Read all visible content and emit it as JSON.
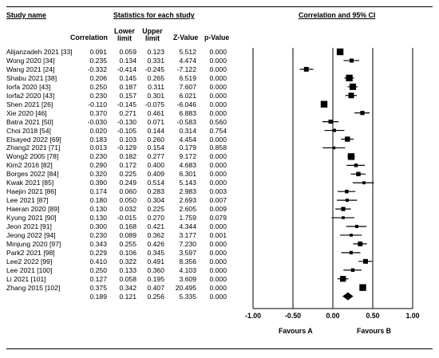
{
  "headers": {
    "study_name": "Study name",
    "stats_title": "Statistics for each study",
    "ci_title": "Correlation and 95% CI",
    "correlation": "Correlation",
    "lower_limit_1": "Lower",
    "lower_limit_2": "limit",
    "upper_limit_1": "Upper",
    "upper_limit_2": "limit",
    "z_value": "Z-Value",
    "p_value": "p-Value"
  },
  "chart_data": {
    "type": "forest",
    "title": "Correlation and 95% CI",
    "xlim": [
      -1.0,
      1.0
    ],
    "x_ticks": [
      "-1.00",
      "-0.50",
      "0.00",
      "0.50",
      "1.00"
    ],
    "x_tick_values": [
      -1.0,
      -0.5,
      0.0,
      0.5,
      1.0
    ],
    "favours_left": "Favours A",
    "favours_right": "Favours B",
    "studies": [
      {
        "name": "Alijanzadeh 2021 [33]",
        "r": "0.091",
        "lower": "0.059",
        "upper": "0.123",
        "z": "5.512",
        "p": "0.000"
      },
      {
        "name": "Wong 2020 [34]",
        "r": "0.235",
        "lower": "0.134",
        "upper": "0.331",
        "z": "4.474",
        "p": "0.000"
      },
      {
        "name": "Wang 2021 [24]",
        "r": "-0.332",
        "lower": "-0.414",
        "upper": "-0.245",
        "z": "-7.122",
        "p": "0.000"
      },
      {
        "name": "Shabu 2021 [38]",
        "r": "0.206",
        "lower": "0.145",
        "upper": "0.265",
        "z": "6.519",
        "p": "0.000"
      },
      {
        "name": "Iorfa 2020 [43]",
        "r": "0.250",
        "lower": "0.187",
        "upper": "0.311",
        "z": "7.607",
        "p": "0.000"
      },
      {
        "name": "Iorfa2 2020 [43]",
        "r": "0.230",
        "lower": "0.157",
        "upper": "0.301",
        "z": "6.021",
        "p": "0.000"
      },
      {
        "name": "Shen 2021 [26]",
        "r": "-0.110",
        "lower": "-0.145",
        "upper": "-0.075",
        "z": "-6.046",
        "p": "0.000"
      },
      {
        "name": "Xie 2020 [46]",
        "r": "0.370",
        "lower": "0.271",
        "upper": "0.461",
        "z": "6.883",
        "p": "0.000"
      },
      {
        "name": "Batra 2021 [50]",
        "r": "-0.030",
        "lower": "-0.130",
        "upper": "0.071",
        "z": "-0.583",
        "p": "0.560"
      },
      {
        "name": "Choi 2018 [54]",
        "r": "0.020",
        "lower": "-0.105",
        "upper": "0.144",
        "z": "0.314",
        "p": "0.754"
      },
      {
        "name": "Elsayed 2022 [69]",
        "r": "0.183",
        "lower": "0.103",
        "upper": "0.260",
        "z": "4.454",
        "p": "0.000"
      },
      {
        "name": "Zhang2 2021 [71]",
        "r": "0.013",
        "lower": "-0.129",
        "upper": "0.154",
        "z": "0.179",
        "p": "0.858"
      },
      {
        "name": "Wong2 2005 [78]",
        "r": "0.230",
        "lower": "0.182",
        "upper": "0.277",
        "z": "9.172",
        "p": "0.000"
      },
      {
        "name": "Kim2 2016 [82]",
        "r": "0.290",
        "lower": "0.172",
        "upper": "0.400",
        "z": "4.683",
        "p": "0.000"
      },
      {
        "name": "Borges 2022 [84]",
        "r": "0.320",
        "lower": "0.225",
        "upper": "0.409",
        "z": "6.301",
        "p": "0.000"
      },
      {
        "name": "Kwak 2021 [85]",
        "r": "0.390",
        "lower": "0.249",
        "upper": "0.514",
        "z": "5.143",
        "p": "0.000"
      },
      {
        "name": "Haejin 2021 [86]",
        "r": "0.174",
        "lower": "0.060",
        "upper": "0.283",
        "z": "2.983",
        "p": "0.003"
      },
      {
        "name": "Lee 2021 [87]",
        "r": "0.180",
        "lower": "0.050",
        "upper": "0.304",
        "z": "2.693",
        "p": "0.007"
      },
      {
        "name": "Haeran 2020 [89]",
        "r": "0.130",
        "lower": "0.032",
        "upper": "0.225",
        "z": "2.605",
        "p": "0.009"
      },
      {
        "name": "Kyung 2021 [90]",
        "r": "0.130",
        "lower": "-0.015",
        "upper": "0.270",
        "z": "1.759",
        "p": "0.079"
      },
      {
        "name": "Jeon 2021 [91]",
        "r": "0.300",
        "lower": "0.168",
        "upper": "0.421",
        "z": "4.344",
        "p": "0.000"
      },
      {
        "name": "Jeong 2022 [94]",
        "r": "0.230",
        "lower": "0.089",
        "upper": "0.362",
        "z": "3.177",
        "p": "0.001"
      },
      {
        "name": "Minjung 2020 [97]",
        "r": "0.343",
        "lower": "0.255",
        "upper": "0.426",
        "z": "7.230",
        "p": "0.000"
      },
      {
        "name": "Park2 2021 [98]",
        "r": "0.229",
        "lower": "0.106",
        "upper": "0.345",
        "z": "3.597",
        "p": "0.000"
      },
      {
        "name": "Lee2 2022 [99]",
        "r": "0.410",
        "lower": "0.322",
        "upper": "0.491",
        "z": "8.356",
        "p": "0.000"
      },
      {
        "name": "Lee 2021 [100]",
        "r": "0.250",
        "lower": "0.133",
        "upper": "0.360",
        "z": "4.103",
        "p": "0.000"
      },
      {
        "name": "Li 2021 [101]",
        "r": "0.127",
        "lower": "0.058",
        "upper": "0.195",
        "z": "3.609",
        "p": "0.000"
      },
      {
        "name": "Zhang 2015 [102]",
        "r": "0.375",
        "lower": "0.342",
        "upper": "0.407",
        "z": "20.495",
        "p": "0.000"
      }
    ],
    "pooled": {
      "name": "",
      "r": "0.189",
      "lower": "0.121",
      "upper": "0.256",
      "z": "5.335",
      "p": "0.000"
    }
  }
}
